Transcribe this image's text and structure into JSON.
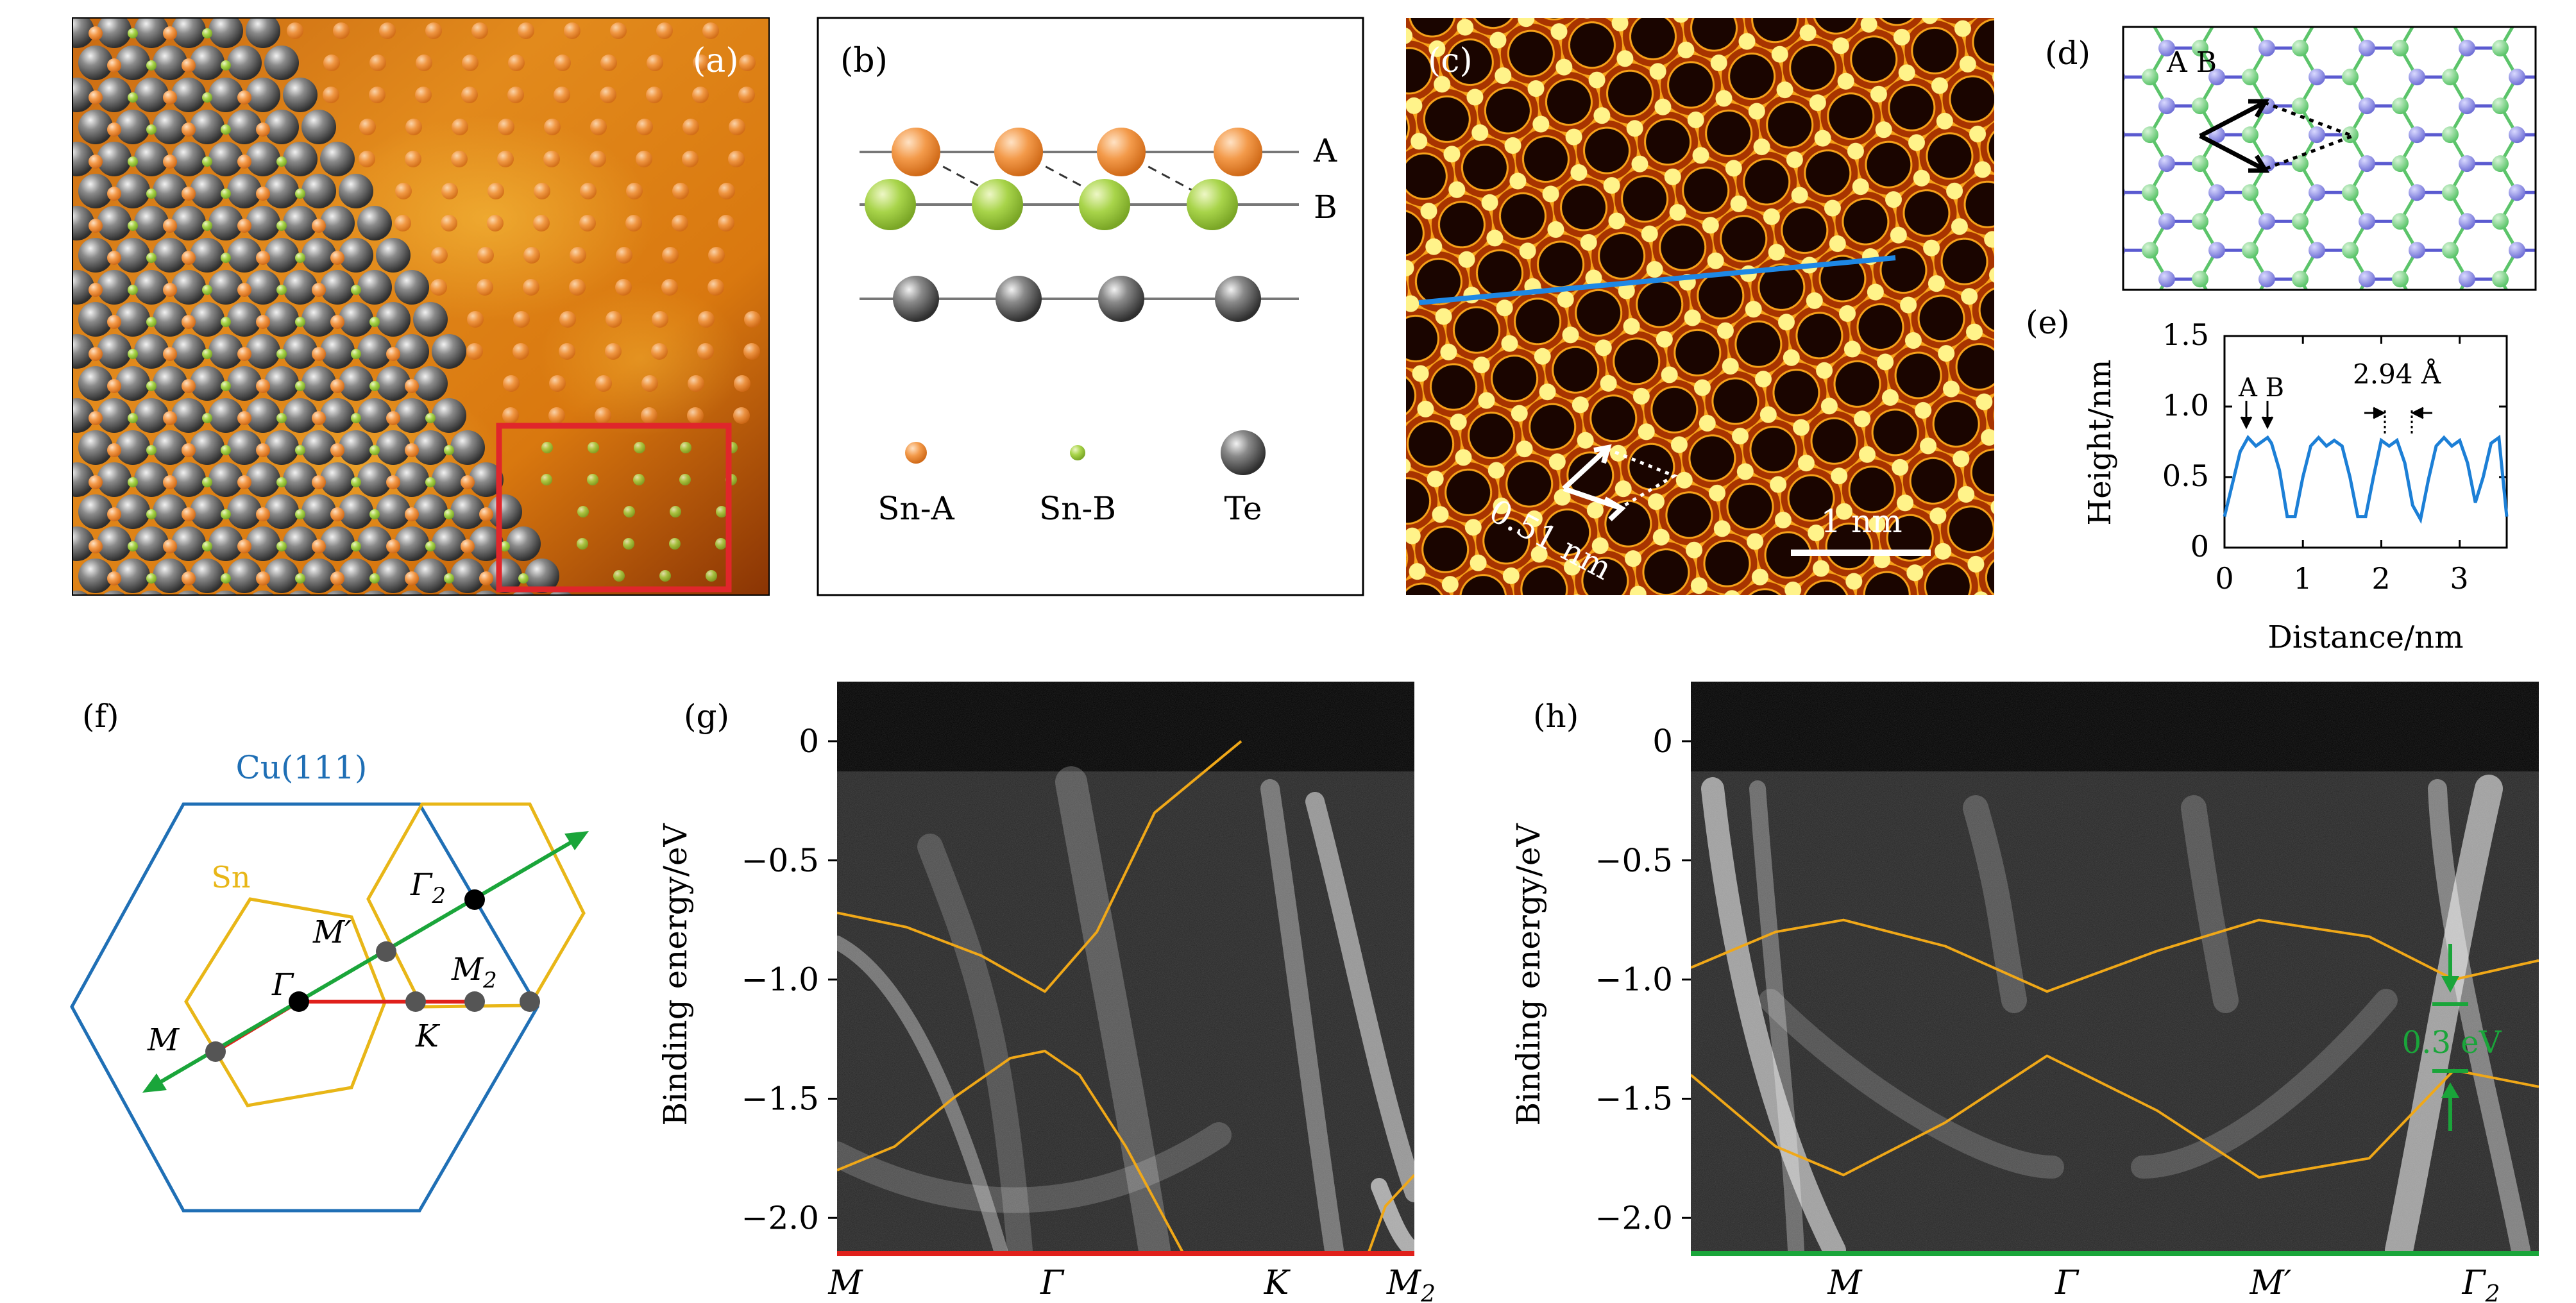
{
  "panels": {
    "a": {
      "label": "(a)"
    },
    "b": {
      "label": "(b)",
      "row_a": "A",
      "row_b": "B",
      "legend": [
        "Sn-A",
        "Sn-B",
        "Te"
      ]
    },
    "c": {
      "label": "(c)",
      "lattice": "0.51 nm",
      "scalebar": "1 nm"
    },
    "d": {
      "label": "(d)",
      "sites": "A B"
    },
    "e": {
      "label": "(e)",
      "ylabel": "Height/nm",
      "xlabel": "Distance/nm",
      "annot_ab": "A B",
      "annot_dist": "2.94 Å",
      "xticks": [
        "0",
        "1",
        "2",
        "3"
      ],
      "yticks": [
        "0",
        "0.5",
        "1.0",
        "1.5"
      ]
    },
    "f": {
      "label": "(f)",
      "cu": "Cu(111)",
      "sn": "Sn",
      "points": {
        "G": "Γ",
        "G2": "Γ",
        "G2sub": "2",
        "M": "M",
        "Mp": "M′",
        "M2": "M",
        "M2sub": "2",
        "K": "K"
      }
    },
    "g": {
      "label": "(g)",
      "ylabel": "Binding energy/eV",
      "xticks": [
        "M",
        "Γ",
        "K",
        "M"
      ],
      "x_last_sub": "2"
    },
    "h": {
      "label": "(h)",
      "ylabel": "Binding energy/eV",
      "xticks": [
        "M",
        "Γ",
        "M′",
        "Γ"
      ],
      "x_last_sub": "2",
      "gap": "0.3 eV"
    }
  },
  "colors": {
    "hex": "#1f6fb5",
    "sn": "#e8b617",
    "cut_red": "#e0201b",
    "cut_green": "#1aa53a",
    "band": "#f0a818",
    "profile": "#1c7fd6",
    "snA": "#f39a4a",
    "snB": "#a8d44a",
    "te": "#555555"
  },
  "chart_data": [
    {
      "type": "line",
      "title": "",
      "xlabel": "Distance/nm",
      "ylabel": "Height/nm",
      "xlim": [
        0,
        3.6
      ],
      "ylim": [
        0,
        1.5
      ],
      "series": [
        {
          "x": [
            0.0,
            0.1,
            0.2,
            0.3,
            0.4,
            0.45,
            0.55,
            0.6,
            0.7,
            0.8,
            0.9,
            1.0,
            1.1,
            1.2,
            1.3,
            1.4,
            1.5,
            1.6,
            1.7,
            1.8,
            1.9,
            2.0,
            2.1,
            2.2,
            2.3,
            2.4,
            2.5,
            2.6,
            2.7,
            2.8,
            2.9,
            3.0,
            3.1,
            3.2,
            3.3,
            3.4,
            3.5,
            3.6
          ],
          "y": [
            0.22,
            0.45,
            0.68,
            0.78,
            0.72,
            0.74,
            0.78,
            0.74,
            0.55,
            0.22,
            0.22,
            0.5,
            0.72,
            0.78,
            0.72,
            0.76,
            0.72,
            0.5,
            0.22,
            0.22,
            0.5,
            0.76,
            0.72,
            0.76,
            0.6,
            0.3,
            0.2,
            0.48,
            0.72,
            0.78,
            0.72,
            0.76,
            0.6,
            0.32,
            0.5,
            0.74,
            0.78,
            0.22
          ]
        }
      ]
    },
    {
      "type": "line",
      "title": "",
      "xlabel": "",
      "ylabel": "Binding energy/eV",
      "ylim": [
        -2.15,
        0.25
      ],
      "xticks": [
        "M",
        "Γ",
        "K",
        "M2"
      ],
      "series": [
        {
          "x": [
            0.0,
            0.12,
            0.25,
            0.36,
            0.45,
            0.55,
            0.7
          ],
          "y": [
            -0.72,
            -0.78,
            -0.9,
            -1.05,
            -0.8,
            -0.3,
            0.0
          ]
        },
        {
          "x": [
            0.0,
            0.1,
            0.2,
            0.3,
            0.36,
            0.42,
            0.5,
            0.6
          ],
          "y": [
            -1.8,
            -1.7,
            -1.5,
            -1.33,
            -1.3,
            -1.4,
            -1.7,
            -2.15
          ]
        },
        {
          "x": [
            0.92,
            0.95,
            1.0
          ],
          "y": [
            -2.15,
            -1.95,
            -1.82
          ]
        }
      ]
    },
    {
      "type": "line",
      "title": "",
      "xlabel": "",
      "ylabel": "Binding energy/eV",
      "ylim": [
        -2.15,
        0.25
      ],
      "xticks": [
        "M",
        "Γ",
        "M′",
        "Γ2"
      ],
      "series": [
        {
          "x": [
            0.0,
            0.1,
            0.18,
            0.3,
            0.42,
            0.55,
            0.67,
            0.8,
            0.9,
            1.0
          ],
          "y": [
            -0.95,
            -0.8,
            -0.75,
            -0.86,
            -1.05,
            -0.88,
            -0.75,
            -0.82,
            -1.0,
            -0.92
          ]
        },
        {
          "x": [
            0.0,
            0.1,
            0.18,
            0.3,
            0.42,
            0.55,
            0.67,
            0.8,
            0.9,
            1.0
          ],
          "y": [
            -1.4,
            -1.7,
            -1.82,
            -1.6,
            -1.32,
            -1.55,
            -1.83,
            -1.75,
            -1.38,
            -1.45
          ]
        }
      ]
    }
  ]
}
